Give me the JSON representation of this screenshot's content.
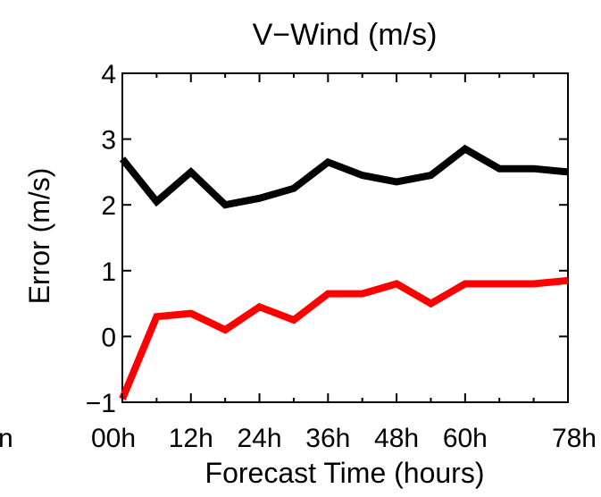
{
  "chart_data": {
    "type": "line",
    "title": "V−Wind (m/s)",
    "xlabel": "Forecast Time (hours)",
    "ylabel": "Error (m/s)",
    "x_tick_labels": [
      "00h",
      "12h",
      "24h",
      "36h",
      "48h",
      "60h",
      "78h"
    ],
    "x_tick_values": [
      0,
      12,
      24,
      36,
      48,
      60,
      78
    ],
    "xlim": [
      0,
      78
    ],
    "ylim": [
      -1,
      4
    ],
    "y_ticks": [
      -1,
      0,
      1,
      2,
      3,
      4
    ],
    "y_tick_labels": [
      "−1",
      "0",
      "1",
      "2",
      "3",
      "4"
    ],
    "grid": false,
    "legend": "none",
    "left_edge_fragment": "n",
    "x": [
      0,
      6,
      12,
      18,
      24,
      30,
      36,
      42,
      48,
      54,
      60,
      66,
      72,
      78
    ],
    "series": [
      {
        "color": "#000000",
        "values": [
          2.7,
          2.05,
          2.5,
          2.0,
          2.1,
          2.25,
          2.65,
          2.45,
          2.35,
          2.45,
          2.85,
          2.55,
          2.55,
          2.5
        ]
      },
      {
        "color": "#ff0000",
        "values": [
          -0.95,
          0.3,
          0.35,
          0.1,
          0.45,
          0.25,
          0.65,
          0.65,
          0.8,
          0.5,
          0.8,
          0.8,
          0.8,
          0.85
        ]
      }
    ]
  }
}
